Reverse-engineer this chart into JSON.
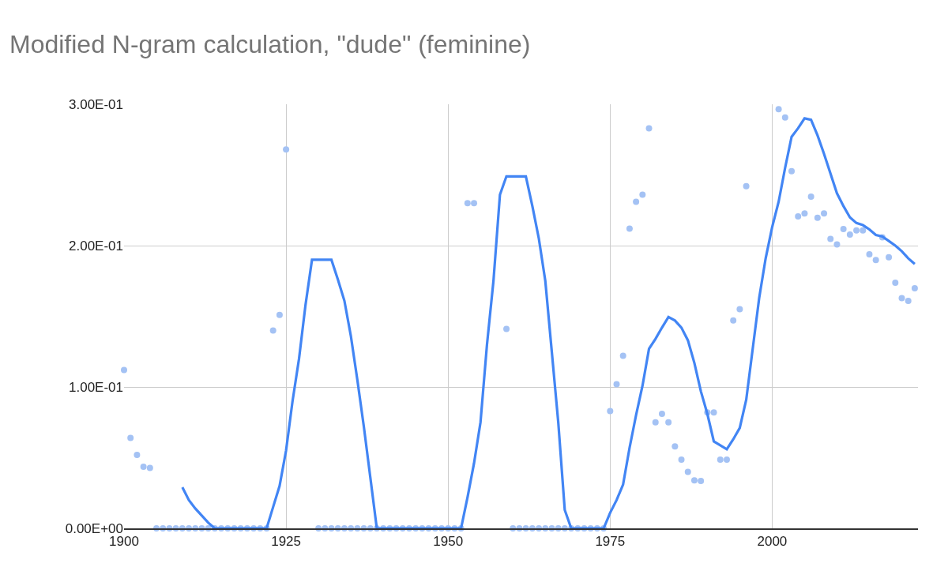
{
  "chart_data": {
    "type": "line",
    "title": "Modified N-gram calculation, \"dude\" (feminine)",
    "xlim": [
      1900,
      2022.5
    ],
    "xticks": [
      1900,
      1925,
      1950,
      1975,
      2000
    ],
    "ylim": [
      0,
      0.3
    ],
    "yticks": [
      {
        "value": 0,
        "label": "0.00E+00"
      },
      {
        "value": 0.1,
        "label": "1.00E-01"
      },
      {
        "value": 0.2,
        "label": "2.00E-01"
      },
      {
        "value": 0.3,
        "label": "3.00E-01"
      }
    ],
    "grid": true,
    "series": [
      {
        "type": "scatter",
        "marker": "circle",
        "color": "#a4c2f4",
        "x": [
          1900,
          1901,
          1902,
          1903,
          1904,
          1905,
          1906,
          1907,
          1908,
          1909,
          1910,
          1911,
          1912,
          1913,
          1914,
          1915,
          1916,
          1917,
          1918,
          1919,
          1920,
          1921,
          1922,
          1923,
          1924,
          1925,
          1926,
          1927,
          1928,
          1929,
          1930,
          1931,
          1932,
          1933,
          1934,
          1935,
          1936,
          1937,
          1938,
          1939,
          1940,
          1941,
          1942,
          1943,
          1944,
          1945,
          1946,
          1947,
          1948,
          1949,
          1950,
          1951,
          1952,
          1953,
          1954,
          1955,
          1956,
          1957,
          1958,
          1959,
          1960,
          1961,
          1962,
          1963,
          1964,
          1965,
          1966,
          1967,
          1968,
          1969,
          1970,
          1971,
          1972,
          1973,
          1974,
          1975,
          1976,
          1977,
          1978,
          1979,
          1980,
          1981,
          1982,
          1983,
          1984,
          1985,
          1986,
          1987,
          1988,
          1989,
          1990,
          1991,
          1992,
          1993,
          1994,
          1995,
          1996,
          1997,
          1998,
          1999,
          2000,
          2001,
          2002,
          2003,
          2004,
          2005,
          2006,
          2007,
          2008,
          2009,
          2010,
          2011,
          2012,
          2013,
          2014,
          2015,
          2016,
          2017,
          2018,
          2019,
          2020,
          2021,
          2022
        ],
        "values": [
          0.112,
          0.064,
          0.052,
          0.0436,
          0.0427,
          0,
          0,
          0,
          0,
          0,
          0,
          0,
          0,
          0,
          0,
          0,
          0,
          0,
          0,
          0,
          0,
          0,
          0,
          0.14,
          0.151,
          0.268,
          null,
          null,
          null,
          null,
          0,
          0,
          0,
          0,
          0,
          0,
          0,
          0,
          0,
          0,
          0,
          0,
          0,
          0,
          0,
          0,
          0,
          0,
          0,
          0,
          0,
          0,
          0,
          0.23,
          0.23,
          null,
          null,
          null,
          null,
          0.141,
          0,
          0,
          0,
          0,
          0,
          0,
          0,
          0,
          0,
          0,
          0,
          0,
          0,
          0,
          0,
          0.083,
          0.102,
          0.122,
          0.212,
          0.231,
          0.236,
          0.283,
          0.075,
          0.081,
          0.075,
          0.058,
          0.0486,
          0.04,
          0.034,
          0.0335,
          0.082,
          0.082,
          0.0486,
          0.0486,
          0.147,
          0.155,
          0.242,
          null,
          null,
          null,
          null,
          0.2965,
          0.2906,
          0.2526,
          0.2207,
          0.2227,
          0.2347,
          0.2197,
          0.2227,
          0.2047,
          0.2008,
          0.2117,
          0.2078,
          0.2107,
          0.2107,
          0.1938,
          0.1898,
          0.2058,
          0.1918,
          0.1738,
          0.1628,
          0.1609,
          0.1698
        ]
      },
      {
        "marker": "none",
        "line_style": "solid",
        "color": "#4285f4",
        "x": [
          1909,
          1910,
          1911,
          1912,
          1913,
          1914,
          1915,
          1916,
          1917,
          1918,
          1919,
          1920,
          1921,
          1922,
          1923,
          1924,
          1925,
          1926,
          1927,
          1928,
          1929,
          1930,
          1931,
          1932,
          1933,
          1934,
          1935,
          1936,
          1937,
          1938,
          1939,
          1940,
          1941,
          1942,
          1943,
          1944,
          1945,
          1946,
          1947,
          1948,
          1949,
          1950,
          1951,
          1952,
          1953,
          1954,
          1955,
          1956,
          1957,
          1958,
          1959,
          1960,
          1961,
          1962,
          1963,
          1964,
          1965,
          1966,
          1967,
          1968,
          1969,
          1970,
          1971,
          1972,
          1973,
          1974,
          1975,
          1976,
          1977,
          1978,
          1979,
          1980,
          1981,
          1982,
          1983,
          1984,
          1985,
          1986,
          1987,
          1988,
          1989,
          1990,
          1991,
          1992,
          1993,
          1994,
          1995,
          1996,
          1997,
          1998,
          1999,
          2000,
          2001,
          2002,
          2003,
          2004,
          2005,
          2006,
          2007,
          2008,
          2009,
          2010,
          2011,
          2012,
          2013,
          2014,
          2015,
          2016,
          2017,
          2018,
          2019,
          2020,
          2021,
          2022
        ],
        "values": [
          0.029,
          0.02,
          0.014,
          0.009,
          0.004,
          0,
          0,
          0,
          0,
          0,
          0,
          0,
          0,
          0,
          0.015,
          0.03,
          0.055,
          0.09,
          0.12,
          0.158,
          0.19,
          0.19,
          0.19,
          0.19,
          0.176,
          0.161,
          0.136,
          0.105,
          0.072,
          0.036,
          0,
          0,
          0,
          0,
          0,
          0,
          0,
          0,
          0,
          0,
          0,
          0,
          0,
          0,
          0.022,
          0.046,
          0.075,
          0.13,
          0.175,
          0.236,
          0.249,
          0.249,
          0.249,
          0.249,
          0.228,
          0.205,
          0.175,
          0.125,
          0.075,
          0.013,
          0,
          0,
          0,
          0,
          0,
          0,
          0.011,
          0.02,
          0.031,
          0.057,
          0.08,
          0.101,
          0.127,
          0.134,
          0.142,
          0.1495,
          0.147,
          0.142,
          0.133,
          0.117,
          0.097,
          0.081,
          0.0615,
          0.0587,
          0.0559,
          0.063,
          0.071,
          0.091,
          0.127,
          0.163,
          0.191,
          0.213,
          0.231,
          0.255,
          0.277,
          0.283,
          0.29,
          0.289,
          0.278,
          0.265,
          0.251,
          0.237,
          0.228,
          0.22,
          0.216,
          0.2145,
          0.2115,
          0.2075,
          0.2064,
          0.2033,
          0.2,
          0.196,
          0.191,
          0.187
        ]
      }
    ]
  }
}
